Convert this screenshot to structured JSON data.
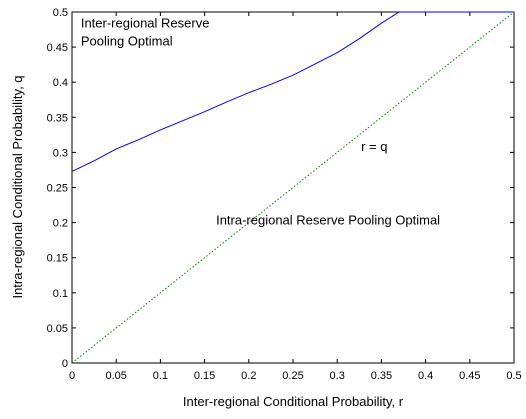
{
  "chart_data": {
    "type": "line",
    "xlabel": "Inter-regional Conditional Probability, r",
    "ylabel": "Intra-regional Conditional Probability, q",
    "xlim": [
      0,
      0.5
    ],
    "ylim": [
      0,
      0.5
    ],
    "grid": false,
    "x_ticks": [
      "0",
      "0.05",
      "0.1",
      "0.15",
      "0.2",
      "0.25",
      "0.3",
      "0.35",
      "0.4",
      "0.45",
      "0.5"
    ],
    "y_ticks": [
      "0",
      "0.05",
      "0.1",
      "0.15",
      "0.2",
      "0.25",
      "0.3",
      "0.35",
      "0.4",
      "0.45",
      "0.5"
    ],
    "series": [
      {
        "style": "solid",
        "color": "#0000ff",
        "x": [
          0,
          0.025,
          0.05,
          0.075,
          0.1,
          0.125,
          0.15,
          0.175,
          0.2,
          0.225,
          0.25,
          0.275,
          0.3,
          0.325,
          0.35,
          0.37,
          0.4,
          0.45,
          0.5
        ],
        "y": [
          0.273,
          0.288,
          0.305,
          0.318,
          0.332,
          0.345,
          0.358,
          0.372,
          0.385,
          0.397,
          0.41,
          0.426,
          0.442,
          0.462,
          0.484,
          0.5,
          0.5,
          0.5,
          0.5
        ]
      },
      {
        "style": "dotted",
        "color": "#008000",
        "x": [
          0,
          0.5
        ],
        "y": [
          0,
          0.5
        ]
      }
    ],
    "annotations": [
      {
        "text": "Inter-regional Reserve",
        "x": 0.01,
        "y": 0.478
      },
      {
        "text": "Pooling Optimal",
        "x": 0.01,
        "y": 0.452
      },
      {
        "text": "r = q",
        "x": 0.327,
        "y": 0.302
      },
      {
        "text": "Intra-regional Reserve Pooling Optimal",
        "x": 0.163,
        "y": 0.197
      }
    ]
  }
}
